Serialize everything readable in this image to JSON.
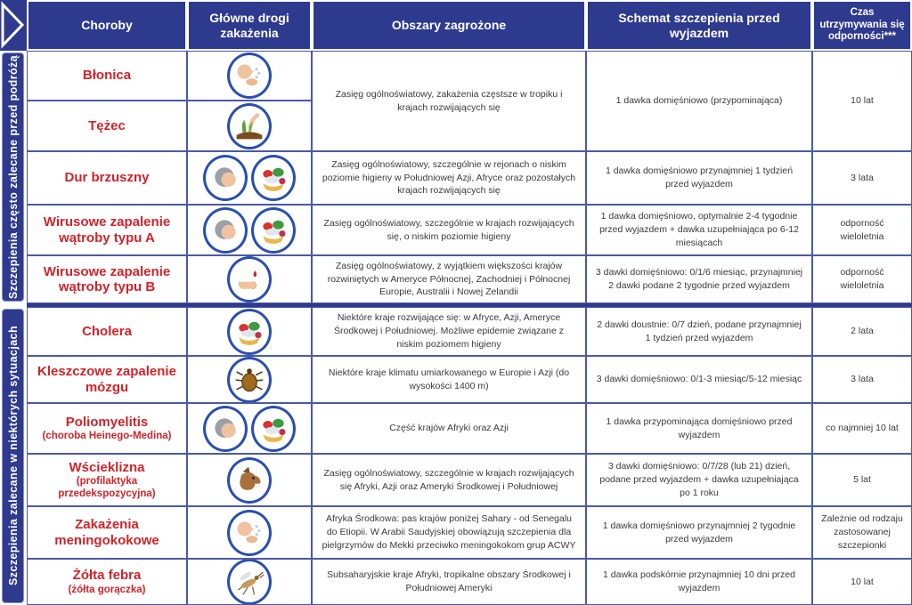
{
  "header": {
    "columns": [
      "Choroby",
      "Główne drogi zakażenia",
      "Obszary zagrożone",
      "Schemat szczepienia przed wyjazdem",
      "Czas utrzymywania się odporności***"
    ]
  },
  "sidebar": {
    "section1": "Szczepienia często zalecane przed podróżą",
    "section2": "Szczepienia zalecane w niektórych sytuacjach"
  },
  "colors": {
    "navy": "#2e3a8e",
    "red": "#d2232a",
    "cell_border": "#4b59a6"
  },
  "rows": [
    {
      "disease": "Błonica",
      "icons": [
        "droplet-person"
      ],
      "area": "Zasięg ogólnoświatowy, zakażenia częstsze w tropiku i krajach rozwijających się",
      "schedule": "1 dawka domięśniowo (przypominająca)",
      "duration": "10 lat"
    },
    {
      "disease": "Tężec",
      "icons": [
        "soil-hand"
      ]
    },
    {
      "disease": "Dur brzuszny",
      "icons": [
        "head",
        "food"
      ],
      "area": "Zasięg ogólnoświatowy, szczególnie w rejonach o niskim poziomie higieny w Południowej Azji, Afryce oraz pozostałych krajach rozwijających się",
      "schedule": "1 dawka domięśniowo przynajmniej 1 tydzień przed wyjazdem",
      "duration": "3 lata"
    },
    {
      "disease": "Wirusowe zapalenie wątroby typu A",
      "icons": [
        "head",
        "food"
      ],
      "area": "Zasięg ogólnoświatowy, szczególnie w krajach rozwijających się, o niskim poziomie higieny",
      "schedule": "1 dawka domięśniowo, optymalnie 2-4 tygodnie przed wyjazdem + dawka uzupełniająca po 6-12 miesiącach",
      "duration": "odporność wieloletnia"
    },
    {
      "disease": "Wirusowe zapalenie wątroby typu B",
      "icons": [
        "blood-finger"
      ],
      "area": "Zasięg ogólnoświatowy, z wyjątkiem większości krajów rozwiniętych w Ameryce Północnej, Zachodniej i Północnej Europie, Australii i Nowej Zelandii",
      "schedule": "3 dawki domięśniowo: 0/1/6 miesiąc, przynajmniej 2 dawki podane 2 tygodnie przed wyjazdem",
      "duration": "odporność wieloletnia"
    },
    {
      "disease": "Cholera",
      "icons": [
        "food"
      ],
      "area": "Niektóre kraje rozwijające się: w Afryce, Azji, Ameryce Środkowej i Południowej. Możliwe epidemie związane z niskim poziomem higieny",
      "schedule": "2 dawki doustnie: 0/7 dzień, podane przynajmniej 1 tydzień przed wyjazdem",
      "duration": "2 lata"
    },
    {
      "disease": "Kleszczowe zapalenie mózgu",
      "icons": [
        "tick"
      ],
      "area": "Niektóre kraje klimatu umiarkowanego w Europie i Azji (do wysokości 1400 m)",
      "schedule": "3 dawki domięśniowo: 0/1-3 miesiąc/5-12 miesiąc",
      "duration": "3 lata"
    },
    {
      "disease": "Poliomyelitis",
      "sub": "(choroba Heinego-Medina)",
      "icons": [
        "head",
        "food"
      ],
      "area": "Część krajów Afryki oraz Azji",
      "schedule": "1 dawka przypominająca domięśniowo przed wyjazdem",
      "duration": "co najmniej 10 lat"
    },
    {
      "disease": "Wścieklizna",
      "sub": "(profilaktyka przedekspozycyjna)",
      "icons": [
        "dog"
      ],
      "area": "Zasięg ogólnoświatowy, szczególnie w krajach rozwijających się Afryki, Azji oraz Ameryki Środkowej i Południowej",
      "schedule": "3 dawki domięśniowo: 0/7/28 (lub 21) dzień, podane przed wyjazdem + dawka uzupełniająca po 1 roku",
      "duration": "5 lat"
    },
    {
      "disease": "Zakażenia meningokokowe",
      "icons": [
        "droplet-person"
      ],
      "area": "Afryka Środkowa: pas krajów poniżej Sahary - od Senegalu do Etiopii. W Arabii Saudyjskiej obowiązują szczepienia dla pielgrzymów do Mekki przeciwko meningokokom grup ACWY",
      "schedule": "1 dawka domięśniowo przynajmniej 2 tygodnie przed wyjazdem",
      "duration": "Zależnie od rodzaju zastosowanej szczepionki"
    },
    {
      "disease": "Żółta febra",
      "sub": "(żółta gorączka)",
      "icons": [
        "mosquito"
      ],
      "area": "Subsaharyjskie kraje Afryki, tropikalne obszary Środkowej i Południowej Ameryki",
      "schedule": "1 dawka podskórnie przynajmniej 10 dni przed wyjazdem",
      "duration": "10 lat"
    }
  ]
}
